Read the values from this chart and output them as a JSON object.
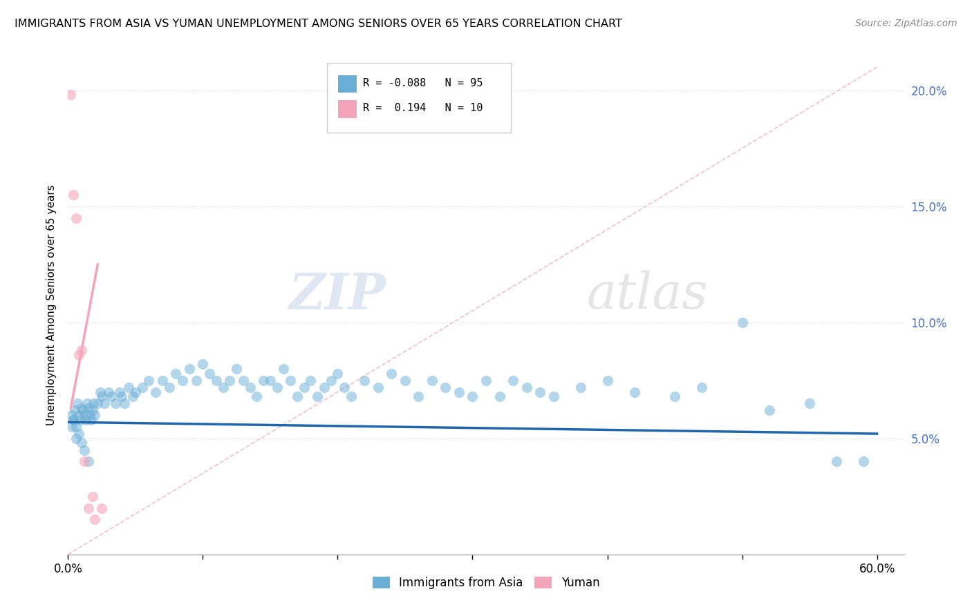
{
  "title": "IMMIGRANTS FROM ASIA VS YUMAN UNEMPLOYMENT AMONG SENIORS OVER 65 YEARS CORRELATION CHART",
  "source": "Source: ZipAtlas.com",
  "xlabel_edge_left": "0.0%",
  "xlabel_edge_right": "60.0%",
  "ylabel_ticks": [
    "5.0%",
    "10.0%",
    "15.0%",
    "20.0%"
  ],
  "ylabel_vals": [
    0.05,
    0.1,
    0.15,
    0.2
  ],
  "ylabel_label": "Unemployment Among Seniors over 65 years",
  "legend_labels": [
    "Immigrants from Asia",
    "Yuman"
  ],
  "blue_color": "#6baed6",
  "pink_color": "#f4a4b8",
  "blue_R": -0.088,
  "blue_N": 95,
  "pink_R": 0.194,
  "pink_N": 10,
  "watermark_zip": "ZIP",
  "watermark_atlas": "atlas",
  "xlim": [
    0.0,
    0.62
  ],
  "ylim": [
    0.0,
    0.215
  ],
  "blue_scatter_x": [
    0.003,
    0.004,
    0.005,
    0.006,
    0.007,
    0.008,
    0.009,
    0.01,
    0.011,
    0.012,
    0.013,
    0.014,
    0.015,
    0.016,
    0.017,
    0.018,
    0.019,
    0.02,
    0.022,
    0.024,
    0.025,
    0.027,
    0.03,
    0.032,
    0.035,
    0.038,
    0.04,
    0.042,
    0.045,
    0.048,
    0.05,
    0.055,
    0.06,
    0.065,
    0.07,
    0.075,
    0.08,
    0.085,
    0.09,
    0.095,
    0.1,
    0.105,
    0.11,
    0.115,
    0.12,
    0.125,
    0.13,
    0.135,
    0.14,
    0.145,
    0.15,
    0.155,
    0.16,
    0.165,
    0.17,
    0.175,
    0.18,
    0.185,
    0.19,
    0.195,
    0.2,
    0.205,
    0.21,
    0.22,
    0.23,
    0.24,
    0.25,
    0.26,
    0.27,
    0.28,
    0.29,
    0.3,
    0.31,
    0.32,
    0.33,
    0.34,
    0.35,
    0.36,
    0.38,
    0.4,
    0.42,
    0.45,
    0.47,
    0.5,
    0.52,
    0.55,
    0.57,
    0.59,
    0.003,
    0.004,
    0.006,
    0.008,
    0.01,
    0.012,
    0.015
  ],
  "blue_scatter_y": [
    0.06,
    0.058,
    0.062,
    0.055,
    0.065,
    0.06,
    0.058,
    0.063,
    0.062,
    0.06,
    0.058,
    0.065,
    0.063,
    0.06,
    0.058,
    0.062,
    0.065,
    0.06,
    0.065,
    0.07,
    0.068,
    0.065,
    0.07,
    0.068,
    0.065,
    0.07,
    0.068,
    0.065,
    0.072,
    0.068,
    0.07,
    0.072,
    0.075,
    0.07,
    0.075,
    0.072,
    0.078,
    0.075,
    0.08,
    0.075,
    0.082,
    0.078,
    0.075,
    0.072,
    0.075,
    0.08,
    0.075,
    0.072,
    0.068,
    0.075,
    0.075,
    0.072,
    0.08,
    0.075,
    0.068,
    0.072,
    0.075,
    0.068,
    0.072,
    0.075,
    0.078,
    0.072,
    0.068,
    0.075,
    0.072,
    0.078,
    0.075,
    0.068,
    0.075,
    0.072,
    0.07,
    0.068,
    0.075,
    0.068,
    0.075,
    0.072,
    0.07,
    0.068,
    0.072,
    0.075,
    0.07,
    0.068,
    0.072,
    0.1,
    0.062,
    0.065,
    0.04,
    0.04,
    0.055,
    0.058,
    0.05,
    0.052,
    0.048,
    0.045,
    0.04
  ],
  "pink_scatter_x": [
    0.002,
    0.004,
    0.006,
    0.008,
    0.01,
    0.012,
    0.015,
    0.018,
    0.02,
    0.025
  ],
  "pink_scatter_y": [
    0.198,
    0.155,
    0.145,
    0.086,
    0.088,
    0.04,
    0.02,
    0.025,
    0.015,
    0.02
  ],
  "blue_line_x": [
    0.0,
    0.6
  ],
  "blue_line_y": [
    0.057,
    0.052
  ],
  "pink_line_x": [
    0.002,
    0.022
  ],
  "pink_line_y": [
    0.063,
    0.125
  ],
  "diag_line_x": [
    0.0,
    0.6
  ],
  "diag_line_y": [
    0.0,
    0.21
  ]
}
